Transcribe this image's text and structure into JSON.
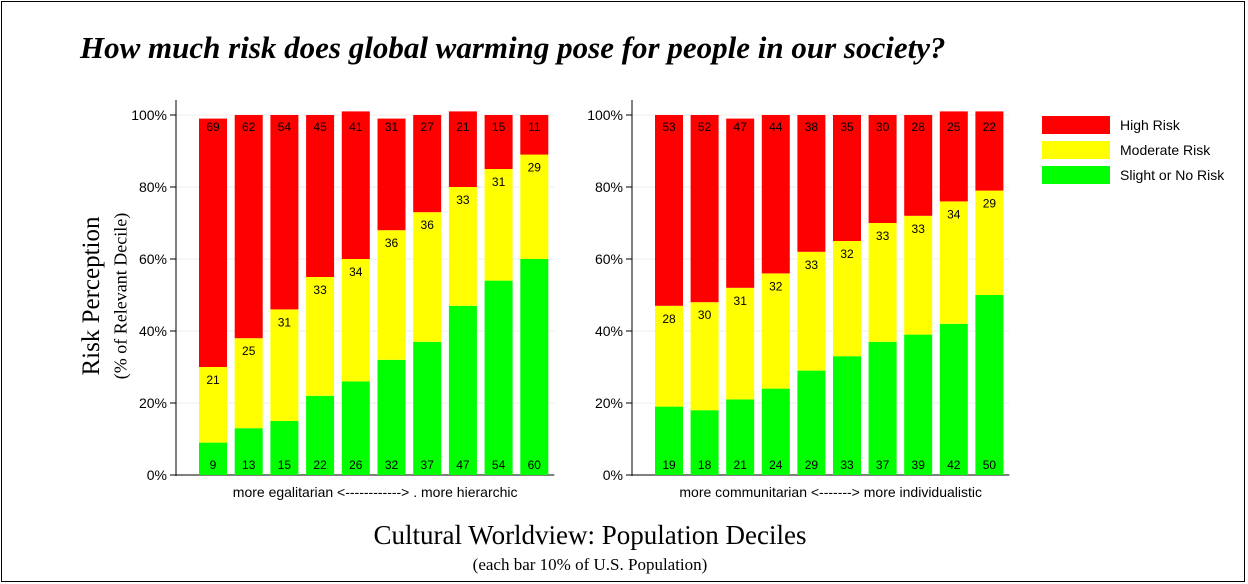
{
  "title": "How much risk does global warming pose for people in our society?",
  "y_title": "Risk Perception",
  "y_subtitle": "(% of Relevant Decile)",
  "x_title": "Cultural Worldview: Population Deciles",
  "x_subtitle": "(each bar 10% of U.S. Population)",
  "legend": [
    {
      "label": "High Risk",
      "color": "#ff0000"
    },
    {
      "label": "Moderate Risk",
      "color": "#ffff00"
    },
    {
      "label": "Slight or No Risk",
      "color": "#00ff00"
    }
  ],
  "chart_data": [
    {
      "type": "bar",
      "stacked": true,
      "normalized": true,
      "xlabel": "more egalitarian <------------> . more hierarchic",
      "yticks": [
        "0%",
        "20%",
        "40%",
        "60%",
        "80%",
        "100%"
      ],
      "ylim": [
        0,
        100
      ],
      "series": [
        {
          "name": "Slight or No Risk",
          "color": "#00ff00",
          "values": [
            9,
            13,
            15,
            22,
            26,
            32,
            37,
            47,
            54,
            60
          ]
        },
        {
          "name": "Moderate Risk",
          "color": "#ffff00",
          "values": [
            21,
            25,
            31,
            33,
            34,
            36,
            36,
            33,
            31,
            29
          ]
        },
        {
          "name": "High Risk",
          "color": "#ff0000",
          "values": [
            69,
            62,
            54,
            45,
            41,
            31,
            27,
            21,
            15,
            11
          ]
        }
      ]
    },
    {
      "type": "bar",
      "stacked": true,
      "normalized": true,
      "xlabel": "more communitarian <-------> more individualistic",
      "yticks": [
        "0%",
        "20%",
        "40%",
        "60%",
        "80%",
        "100%"
      ],
      "ylim": [
        0,
        100
      ],
      "series": [
        {
          "name": "Slight or No Risk",
          "color": "#00ff00",
          "values": [
            19,
            18,
            21,
            24,
            29,
            33,
            37,
            39,
            42,
            50
          ]
        },
        {
          "name": "Moderate Risk",
          "color": "#ffff00",
          "values": [
            28,
            30,
            31,
            32,
            33,
            32,
            33,
            33,
            34,
            29
          ]
        },
        {
          "name": "High Risk",
          "color": "#ff0000",
          "values": [
            53,
            52,
            47,
            44,
            38,
            35,
            30,
            28,
            25,
            22
          ]
        }
      ]
    }
  ]
}
